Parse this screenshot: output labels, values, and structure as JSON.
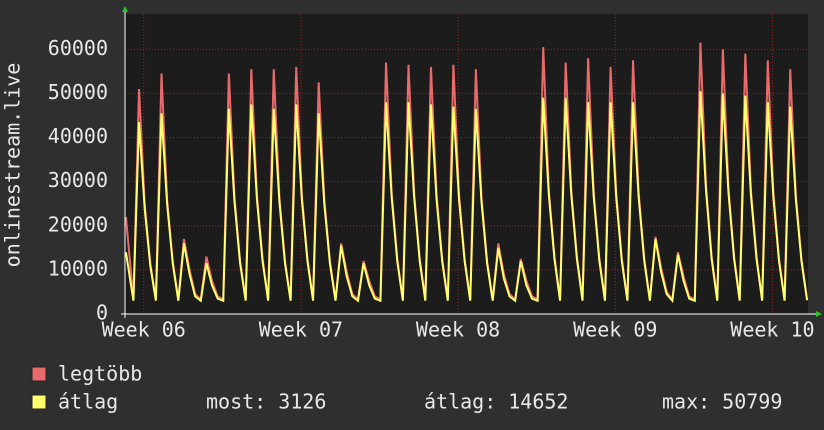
{
  "chart_data": {
    "type": "line",
    "y_label": "onlinestream.live",
    "background": "#2f2f2f",
    "plot_background": "#1c1c1c",
    "grid_color": "#a02020",
    "text_color": "#e8e8e8",
    "grid": true,
    "xlim": [
      -20,
      710
    ],
    "xticks": [
      {
        "value": 0,
        "label": "Week 06"
      },
      {
        "value": 168,
        "label": "Week 07"
      },
      {
        "value": 336,
        "label": "Week 08"
      },
      {
        "value": 504,
        "label": "Week 09"
      },
      {
        "value": 672,
        "label": "Week 10"
      }
    ],
    "ylim": [
      0,
      68000
    ],
    "yticks": [
      0,
      10000,
      20000,
      30000,
      40000,
      50000,
      60000
    ],
    "x": [
      -19,
      -11,
      -5,
      1,
      7,
      13,
      19,
      25,
      31,
      37,
      43,
      49,
      55,
      61,
      67,
      73,
      79,
      85,
      91,
      97,
      103,
      109,
      115,
      121,
      127,
      133,
      139,
      145,
      151,
      157,
      163,
      169,
      175,
      181,
      187,
      193,
      199,
      205,
      211,
      217,
      223,
      229,
      235,
      241,
      247,
      253,
      259,
      265,
      271,
      277,
      283,
      289,
      295,
      301,
      307,
      313,
      319,
      325,
      331,
      337,
      343,
      349,
      355,
      361,
      367,
      373,
      379,
      385,
      391,
      397,
      403,
      409,
      415,
      421,
      427,
      433,
      439,
      445,
      451,
      457,
      463,
      469,
      475,
      481,
      487,
      493,
      499,
      505,
      511,
      517,
      523,
      529,
      535,
      541,
      547,
      553,
      559,
      565,
      571,
      577,
      583,
      589,
      595,
      601,
      607,
      613,
      619,
      625,
      631,
      637,
      643,
      649,
      655,
      661,
      667,
      673,
      679,
      685,
      691,
      697,
      703,
      709
    ],
    "series": [
      {
        "name": "legtöbb",
        "color": "#e86a6a",
        "values": [
          22000,
          3300,
          51000,
          25000,
          11500,
          3300,
          54500,
          26000,
          12000,
          3300,
          17000,
          10000,
          4500,
          3300,
          13000,
          7500,
          4000,
          3300,
          54500,
          26500,
          12000,
          3300,
          55500,
          27000,
          12500,
          3300,
          55500,
          26500,
          12000,
          3300,
          56000,
          27000,
          12500,
          3300,
          52500,
          26000,
          12000,
          3300,
          16000,
          9500,
          4500,
          3300,
          12000,
          7500,
          4000,
          3300,
          57000,
          27500,
          12500,
          3300,
          56500,
          27500,
          12500,
          3300,
          56000,
          27000,
          12500,
          3300,
          56500,
          27000,
          12500,
          3300,
          55500,
          26500,
          12000,
          3300,
          16000,
          9000,
          4500,
          3300,
          12500,
          7500,
          4000,
          3300,
          60500,
          28000,
          13000,
          3300,
          57000,
          28000,
          13000,
          3300,
          58000,
          27500,
          12500,
          3300,
          56000,
          27500,
          12500,
          3300,
          57500,
          27500,
          12500,
          3300,
          17500,
          10500,
          5000,
          3300,
          14000,
          8500,
          4000,
          3300,
          61500,
          29000,
          13000,
          3300,
          60000,
          28500,
          13000,
          3300,
          59000,
          28000,
          13000,
          3300,
          57500,
          27500,
          12500,
          3300,
          55500,
          27000,
          12500,
          3300
        ]
      },
      {
        "name": "átlag",
        "color": "#ffff6e",
        "values": [
          14000,
          3000,
          43500,
          24000,
          11000,
          3000,
          45500,
          25000,
          11500,
          3000,
          16000,
          9000,
          4000,
          3000,
          11500,
          6500,
          3500,
          3000,
          46500,
          25500,
          11500,
          3000,
          47500,
          26000,
          12000,
          3000,
          46500,
          25500,
          11500,
          3000,
          47500,
          26000,
          12000,
          3000,
          45500,
          25000,
          11500,
          3000,
          15500,
          8500,
          4000,
          3000,
          11500,
          6500,
          3500,
          3000,
          48000,
          26500,
          12000,
          3000,
          48000,
          26500,
          12000,
          3000,
          47500,
          26000,
          12000,
          3000,
          47000,
          26000,
          12000,
          3000,
          46500,
          25500,
          11500,
          3000,
          15000,
          8000,
          4000,
          3000,
          12000,
          6500,
          3500,
          3000,
          49000,
          27000,
          12500,
          3000,
          49000,
          27000,
          12500,
          3000,
          48000,
          26500,
          12000,
          3000,
          48000,
          26500,
          12000,
          3000,
          48000,
          26500,
          12000,
          3000,
          17000,
          9500,
          4500,
          3000,
          13500,
          7500,
          3500,
          3000,
          50500,
          28000,
          12500,
          3000,
          50000,
          27500,
          12500,
          3000,
          49500,
          27000,
          12500,
          3000,
          48000,
          26500,
          12000,
          3000,
          47000,
          26000,
          12000,
          3126
        ]
      }
    ],
    "stats": [
      {
        "label": "most:",
        "value": 3126
      },
      {
        "label": "átlag:",
        "value": 14652
      },
      {
        "label": "max:",
        "value": 50799
      }
    ]
  }
}
